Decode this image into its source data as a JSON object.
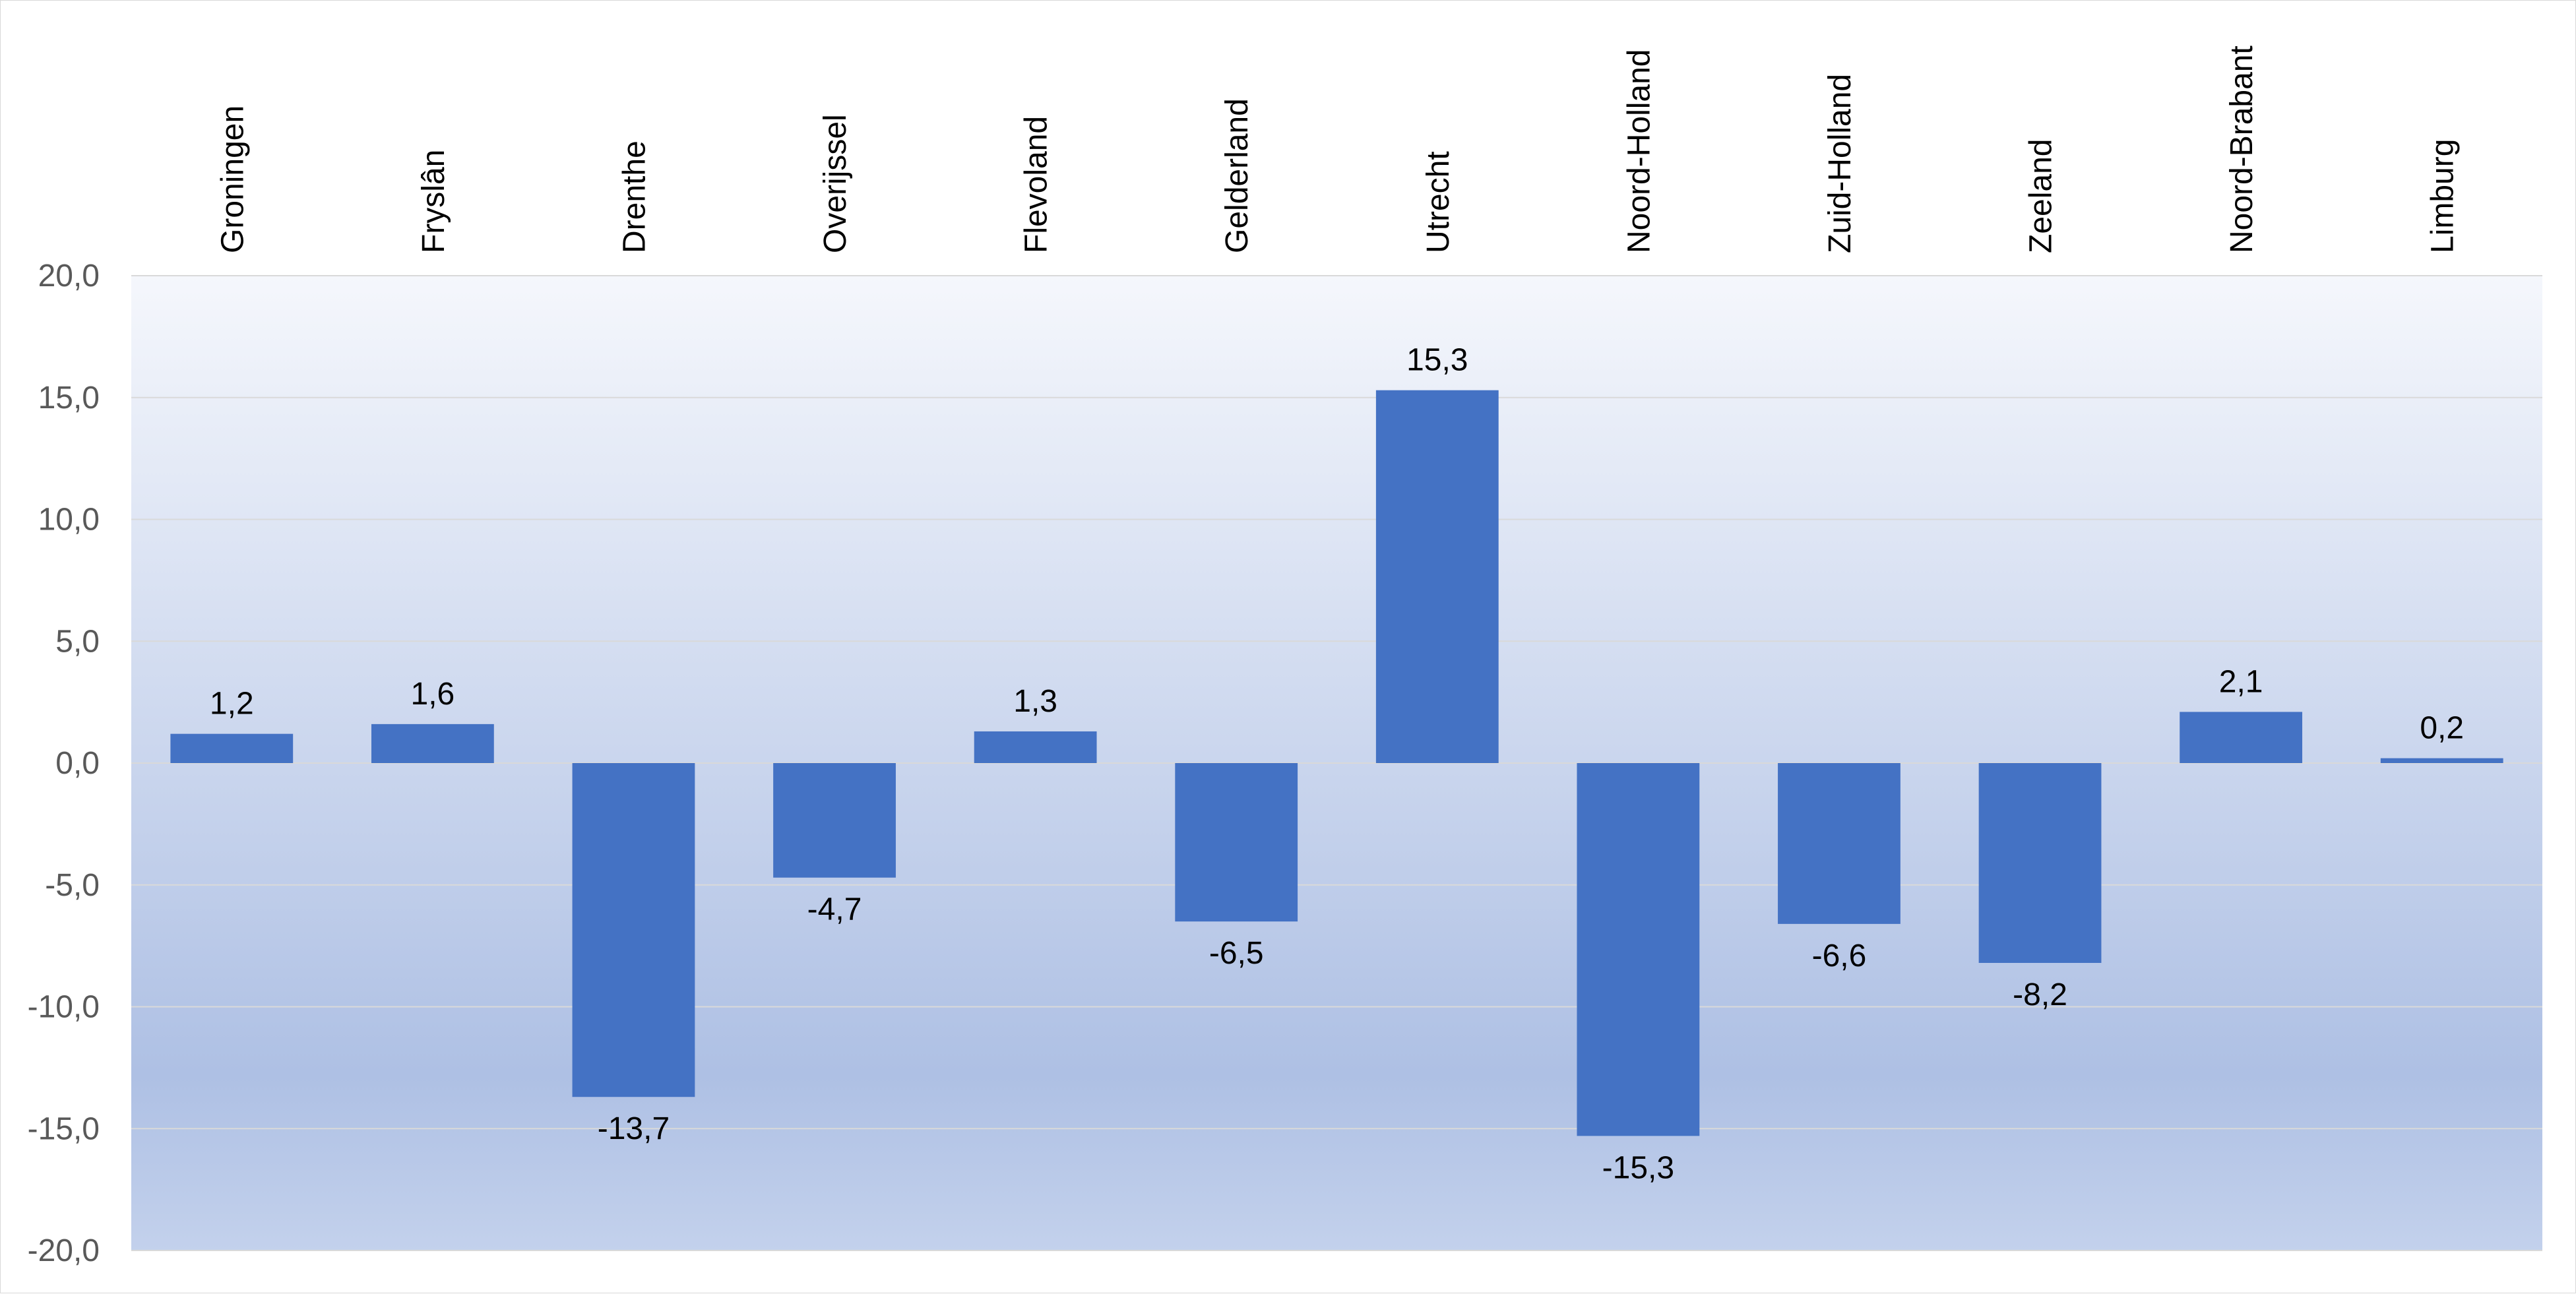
{
  "chart_data": {
    "type": "bar",
    "title": "",
    "xlabel": "",
    "ylabel": "",
    "categories": [
      "Groningen",
      "Fryslân",
      "Drenthe",
      "Overijssel",
      "Flevoland",
      "Gelderland",
      "Utrecht",
      "Noord-Holland",
      "Zuid-Holland",
      "Zeeland",
      "Noord-Brabant",
      "Limburg"
    ],
    "values": [
      1.2,
      1.6,
      -13.7,
      -4.7,
      1.3,
      -6.5,
      15.3,
      -15.3,
      -6.6,
      -8.2,
      2.1,
      0.2
    ],
    "value_labels": [
      "1,2",
      "1,6",
      "-13,7",
      "-4,7",
      "1,3",
      "-6,5",
      "15,3",
      "-15,3",
      "-6,6",
      "-8,2",
      "2,1",
      "0,2"
    ],
    "ylim": [
      -20,
      20
    ],
    "yticks": [
      20,
      15,
      10,
      5,
      0,
      -5,
      -10,
      -15,
      -20
    ],
    "ytick_labels": [
      "20,0",
      "15,0",
      "10,0",
      "5,0",
      "0,0",
      "-5,0",
      "-10,0",
      "-15,0",
      "-20,0"
    ],
    "category_label_position": "top-rotated",
    "grid": true,
    "legend": "none",
    "colors": {
      "bar": "#4472C4",
      "plot_gradient_top": "#F5F7FC",
      "plot_gradient_bottom": "#AEC0E4",
      "plot_gradient_end": "#C3D1EC",
      "gridline": "#D9D9D9"
    }
  }
}
